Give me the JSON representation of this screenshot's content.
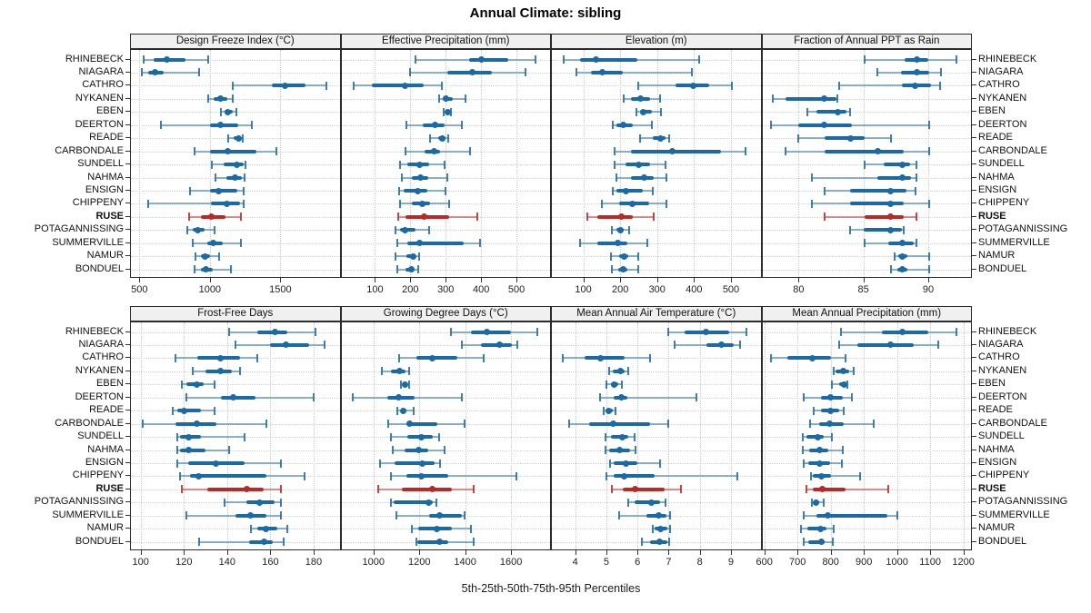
{
  "title": "Annual Climate: sibling",
  "footer": "5th-25th-50th-75th-95th Percentiles",
  "highlight_station": "RUSE",
  "colors": {
    "normal": "#1b6aa5",
    "highlight": "#bd2724",
    "strip_bg": "#f0f0f0",
    "panel_border": "#2b2b2b",
    "grid": "#c9c9c9"
  },
  "stations": [
    "RHINEBECK",
    "NIAGARA",
    "CATHRO",
    "NYKANEN",
    "EBEN",
    "DEERTON",
    "READE",
    "CARBONDALE",
    "SUNDELL",
    "NAHMA",
    "ENSIGN",
    "CHIPPENY",
    "RUSE",
    "POTAGANNISSING",
    "SUMMERVILLE",
    "NAMUR",
    "BONDUEL"
  ],
  "chart_data": {
    "type": "dot-interval-trellis",
    "percentile_labels": [
      "5th",
      "25th",
      "50th",
      "75th",
      "95th"
    ],
    "layout": {
      "rows": 2,
      "cols": 4
    },
    "panels": [
      {
        "title": "Design Freeze Index (°C)",
        "row": 0,
        "col": 0,
        "xlim": [
          440,
          1920
        ],
        "ticks": [
          500,
          1000,
          1500
        ],
        "values": [
          [
            530,
            600,
            695,
            830,
            990
          ],
          [
            520,
            560,
            610,
            675,
            925
          ],
          [
            1160,
            1440,
            1535,
            1675,
            1825
          ],
          [
            990,
            1030,
            1075,
            1125,
            1165
          ],
          [
            1080,
            1105,
            1130,
            1160,
            1185
          ],
          [
            650,
            1000,
            1075,
            1200,
            1300
          ],
          [
            1130,
            1170,
            1205,
            1220,
            1235
          ],
          [
            890,
            1000,
            1130,
            1330,
            1470
          ],
          [
            1015,
            1100,
            1190,
            1240,
            1255
          ],
          [
            1040,
            1120,
            1180,
            1225,
            1245
          ],
          [
            860,
            1000,
            1065,
            1195,
            1240
          ],
          [
            565,
            1010,
            1120,
            1215,
            1240
          ],
          [
            855,
            935,
            1010,
            1110,
            1220
          ],
          [
            840,
            880,
            915,
            960,
            1035
          ],
          [
            880,
            980,
            1025,
            1090,
            1220
          ],
          [
            900,
            935,
            965,
            1000,
            1065
          ],
          [
            890,
            935,
            970,
            1020,
            1150
          ]
        ]
      },
      {
        "title": "Effective Precipitation (mm)",
        "row": 0,
        "col": 1,
        "xlim": [
          5,
          595
        ],
        "ticks": [
          100,
          200,
          300,
          400,
          500
        ],
        "values": [
          [
            215,
            365,
            400,
            478,
            555
          ],
          [
            200,
            305,
            375,
            430,
            525
          ],
          [
            40,
            90,
            185,
            238,
            290
          ],
          [
            282,
            292,
            300,
            320,
            357
          ],
          [
            294,
            300,
            305,
            311,
            316
          ],
          [
            190,
            235,
            270,
            298,
            345
          ],
          [
            256,
            278,
            291,
            299,
            307
          ],
          [
            187,
            240,
            266,
            283,
            370
          ],
          [
            171,
            192,
            225,
            253,
            297
          ],
          [
            176,
            205,
            229,
            250,
            305
          ],
          [
            169,
            182,
            220,
            248,
            300
          ],
          [
            171,
            205,
            233,
            255,
            310
          ],
          [
            166,
            187,
            240,
            310,
            390
          ],
          [
            158,
            172,
            186,
            215,
            254
          ],
          [
            164,
            192,
            225,
            350,
            398
          ],
          [
            158,
            190,
            207,
            215,
            225
          ],
          [
            164,
            185,
            203,
            212,
            222
          ]
        ]
      },
      {
        "title": "Elevation (m)",
        "row": 0,
        "col": 2,
        "xlim": [
          15,
          580
        ],
        "ticks": [
          100,
          200,
          300,
          400,
          500
        ],
        "values": [
          [
            46,
            92,
            135,
            246,
            413
          ],
          [
            81,
            120,
            151,
            208,
            395
          ],
          [
            250,
            351,
            397,
            441,
            502
          ],
          [
            210,
            228,
            254,
            280,
            307
          ],
          [
            245,
            255,
            263,
            285,
            311
          ],
          [
            180,
            190,
            208,
            235,
            287
          ],
          [
            254,
            288,
            309,
            322,
            332
          ],
          [
            184,
            228,
            340,
            474,
            539
          ],
          [
            185,
            215,
            250,
            282,
            322
          ],
          [
            189,
            230,
            265,
            290,
            325
          ],
          [
            179,
            190,
            216,
            260,
            289
          ],
          [
            151,
            196,
            232,
            278,
            324
          ],
          [
            112,
            137,
            204,
            234,
            291
          ],
          [
            177,
            190,
            200,
            210,
            224
          ],
          [
            92,
            137,
            193,
            220,
            273
          ],
          [
            176,
            196,
            210,
            222,
            250
          ],
          [
            177,
            195,
            208,
            220,
            248
          ]
        ]
      },
      {
        "title": "Fraction of Annual PPT as Rain",
        "row": 0,
        "col": 3,
        "xlim": [
          77.2,
          93.3
        ],
        "ticks": [
          80,
          85,
          90
        ],
        "values": [
          [
            85.1,
            88.2,
            89.1,
            90.0,
            92.2
          ],
          [
            86.1,
            87.9,
            89.1,
            90.1,
            91.0
          ],
          [
            83.1,
            88.0,
            89.0,
            90.2,
            90.9
          ],
          [
            78.0,
            79.0,
            82.0,
            82.9,
            83.0
          ],
          [
            80.7,
            81.4,
            83.0,
            83.7,
            84.0
          ],
          [
            77.9,
            80.0,
            82.0,
            84.1,
            90.1
          ],
          [
            80.0,
            82.0,
            84.0,
            85.1,
            87.1
          ],
          [
            79.0,
            82.0,
            86.1,
            88.1,
            90.1
          ],
          [
            85.1,
            86.6,
            88.0,
            88.6,
            89.1
          ],
          [
            81.0,
            86.1,
            88.0,
            88.7,
            89.1
          ],
          [
            82.0,
            84.0,
            87.1,
            88.3,
            89.0
          ],
          [
            81.0,
            84.0,
            87.1,
            88.1,
            90.1
          ],
          [
            82.0,
            85.1,
            87.1,
            88.1,
            89.1
          ],
          [
            84.0,
            85.0,
            87.1,
            88.0,
            88.1
          ],
          [
            85.1,
            86.9,
            88.0,
            88.9,
            89.1
          ],
          [
            87.4,
            87.7,
            88.0,
            88.4,
            90.1
          ],
          [
            87.1,
            87.6,
            88.0,
            88.4,
            90.1
          ]
        ]
      },
      {
        "title": "Frost-Free Days",
        "row": 1,
        "col": 0,
        "xlim": [
          95.5,
          192
        ],
        "ticks": [
          100,
          120,
          140,
          160,
          180
        ],
        "values": [
          [
            141,
            154,
            162,
            168,
            181
          ],
          [
            144,
            160,
            167,
            178,
            185
          ],
          [
            116,
            126,
            137,
            146,
            154
          ],
          [
            124,
            130,
            137,
            142,
            146
          ],
          [
            119,
            121,
            126,
            129,
            134
          ],
          [
            121,
            137,
            143,
            153,
            180
          ],
          [
            115,
            117,
            120,
            128,
            134
          ],
          [
            101,
            116,
            126,
            135,
            158
          ],
          [
            117,
            118,
            122,
            128,
            148
          ],
          [
            117,
            118,
            122,
            130,
            141
          ],
          [
            117,
            122,
            135,
            148,
            165
          ],
          [
            118,
            123,
            127,
            158,
            176
          ],
          [
            119,
            131,
            149,
            157,
            165
          ],
          [
            139,
            149,
            155,
            162,
            165
          ],
          [
            121,
            144,
            151,
            158,
            165
          ],
          [
            151,
            154,
            158,
            163,
            168
          ],
          [
            127,
            150,
            157,
            161,
            166
          ]
        ]
      },
      {
        "title": "Growing Degree Days (°C)",
        "row": 1,
        "col": 1,
        "xlim": [
          860,
          1770
        ],
        "ticks": [
          1000,
          1200,
          1400,
          1600
        ],
        "values": [
          [
            1337,
            1426,
            1494,
            1598,
            1713
          ],
          [
            1386,
            1469,
            1549,
            1604,
            1628
          ],
          [
            1112,
            1188,
            1258,
            1366,
            1479
          ],
          [
            1036,
            1075,
            1115,
            1139,
            1155
          ],
          [
            1121,
            1130,
            1139,
            1148,
            1157
          ],
          [
            910,
            1062,
            1108,
            1181,
            1386
          ],
          [
            1102,
            1118,
            1131,
            1145,
            1175
          ],
          [
            1065,
            1150,
            1157,
            1280,
            1397
          ],
          [
            1078,
            1148,
            1210,
            1260,
            1287
          ],
          [
            1086,
            1135,
            1197,
            1240,
            1311
          ],
          [
            1029,
            1091,
            1214,
            1267,
            1290
          ],
          [
            1075,
            1144,
            1210,
            1327,
            1624
          ],
          [
            1019,
            1123,
            1258,
            1340,
            1437
          ],
          [
            1078,
            1088,
            1240,
            1258,
            1276
          ],
          [
            1099,
            1244,
            1287,
            1386,
            1399
          ],
          [
            1167,
            1197,
            1276,
            1343,
            1426
          ],
          [
            1188,
            1190,
            1287,
            1327,
            1437
          ]
        ]
      },
      {
        "title": "Mean Annual Air Temperature (°C)",
        "row": 1,
        "col": 2,
        "xlim": [
          3.25,
          9.95
        ],
        "ticks": [
          4,
          5,
          6,
          7,
          8,
          9
        ],
        "values": [
          [
            7.0,
            7.5,
            8.2,
            8.95,
            9.5
          ],
          [
            7.2,
            8.2,
            8.7,
            9.1,
            9.3
          ],
          [
            3.6,
            4.3,
            4.8,
            5.6,
            6.4
          ],
          [
            5.1,
            5.2,
            5.45,
            5.6,
            5.7
          ],
          [
            5.0,
            5.15,
            5.26,
            5.38,
            5.5
          ],
          [
            4.8,
            5.23,
            5.49,
            5.67,
            7.9
          ],
          [
            4.9,
            5.0,
            5.08,
            5.2,
            5.3
          ],
          [
            3.8,
            4.46,
            5.21,
            6.39,
            7.0
          ],
          [
            4.97,
            5.15,
            5.5,
            5.7,
            5.91
          ],
          [
            4.97,
            5.1,
            5.42,
            5.75,
            5.94
          ],
          [
            5.13,
            5.23,
            5.64,
            6.0,
            6.73
          ],
          [
            5.01,
            5.23,
            5.57,
            6.54,
            9.2
          ],
          [
            5.18,
            5.52,
            5.93,
            6.88,
            7.41
          ],
          [
            5.7,
            5.91,
            6.44,
            6.73,
            6.91
          ],
          [
            5.4,
            6.3,
            6.69,
            6.93,
            7.04
          ],
          [
            6.49,
            6.55,
            6.75,
            6.95,
            7.05
          ],
          [
            6.13,
            6.4,
            6.71,
            6.95,
            7.02
          ]
        ]
      },
      {
        "title": "Mean Annual Precipitation (mm)",
        "row": 1,
        "col": 3,
        "xlim": [
          594,
          1223
        ],
        "ticks": [
          600,
          700,
          800,
          900,
          1000,
          1100,
          1200
        ],
        "values": [
          [
            830,
            955,
            1015,
            1095,
            1180
          ],
          [
            825,
            880,
            980,
            1050,
            1125
          ],
          [
            620,
            670,
            745,
            800,
            845
          ],
          [
            810,
            815,
            838,
            855,
            870
          ],
          [
            805,
            825,
            840,
            845,
            850
          ],
          [
            720,
            770,
            800,
            836,
            863
          ],
          [
            749,
            770,
            800,
            825,
            840
          ],
          [
            738,
            765,
            797,
            838,
            929
          ],
          [
            715,
            727,
            761,
            779,
            803
          ],
          [
            715,
            735,
            767,
            793,
            836
          ],
          [
            718,
            733,
            768,
            797,
            833
          ],
          [
            740,
            745,
            772,
            800,
            888
          ],
          [
            727,
            745,
            774,
            845,
            974
          ],
          [
            742,
            748,
            755,
            765,
            779
          ],
          [
            720,
            758,
            791,
            970,
            1000
          ],
          [
            710,
            730,
            770,
            787,
            809
          ],
          [
            720,
            733,
            773,
            783,
            806
          ]
        ]
      }
    ]
  }
}
